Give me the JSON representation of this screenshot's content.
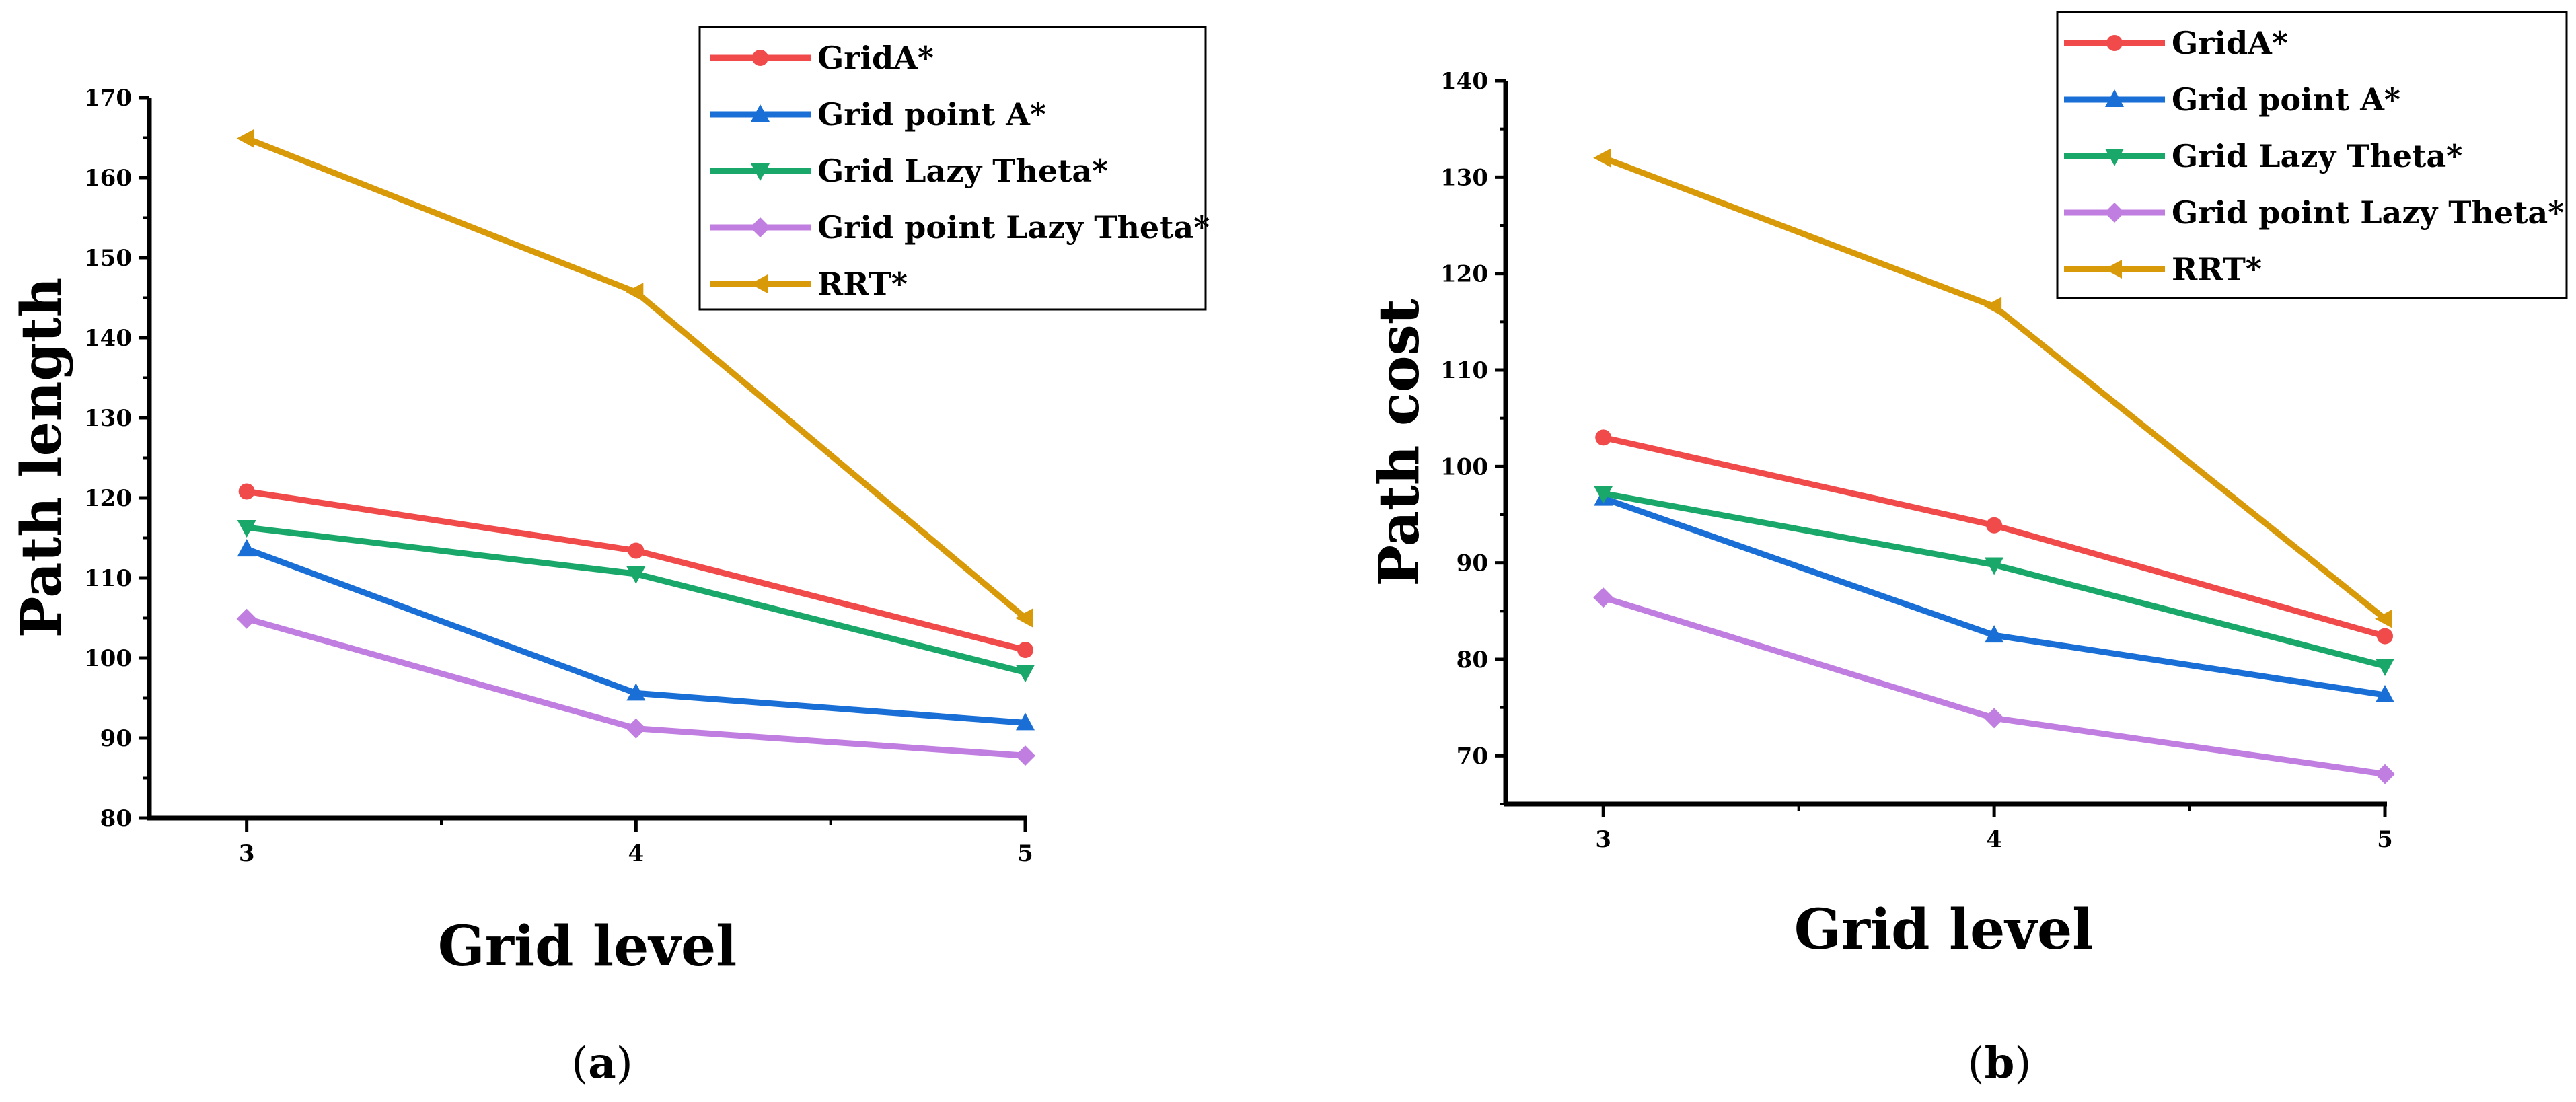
{
  "colors": {
    "GridA*": "#f04a4a",
    "Grid point A*": "#1a6fd6",
    "Grid Lazy Theta*": "#1aa86a",
    "Grid point Lazy Theta*": "#c07ee0",
    "RRT*": "#d99a0a"
  },
  "chart_data": [
    {
      "type": "line",
      "panel_label": {
        "open": "(",
        "letter": "a",
        "close": ")"
      },
      "xlabel": "Grid level",
      "ylabel": "Path length",
      "x": [
        3,
        4,
        5
      ],
      "xlim": [
        2.75,
        5
      ],
      "ylim": [
        80,
        170
      ],
      "yticks": [
        80,
        90,
        100,
        110,
        120,
        130,
        140,
        150,
        160,
        170
      ],
      "xticks": [
        3,
        4,
        5
      ],
      "grid": false,
      "legend": "top-right",
      "series": [
        {
          "name": "GridA*",
          "marker": "circle",
          "values": [
            120.8,
            113.4,
            101.0
          ]
        },
        {
          "name": "Grid point A*",
          "marker": "triangle-up",
          "values": [
            113.6,
            95.6,
            91.9
          ]
        },
        {
          "name": "Grid Lazy Theta*",
          "marker": "triangle-down",
          "values": [
            116.3,
            110.5,
            98.2
          ]
        },
        {
          "name": "Grid point Lazy Theta*",
          "marker": "diamond",
          "values": [
            104.9,
            91.2,
            87.8
          ]
        },
        {
          "name": "RRT*",
          "marker": "triangle-left",
          "values": [
            164.9,
            145.7,
            105.0
          ]
        }
      ]
    },
    {
      "type": "line",
      "panel_label": {
        "open": "(",
        "letter": "b",
        "close": ")"
      },
      "xlabel": "Grid level",
      "ylabel": "Path cost",
      "x": [
        3,
        4,
        5
      ],
      "xlim": [
        2.75,
        5
      ],
      "ylim": [
        65,
        140
      ],
      "yticks": [
        70,
        80,
        90,
        100,
        110,
        120,
        130,
        140
      ],
      "xticks": [
        3,
        4,
        5
      ],
      "grid": false,
      "legend": "top-right",
      "series": [
        {
          "name": "GridA*",
          "marker": "circle",
          "values": [
            103.0,
            93.9,
            82.4
          ]
        },
        {
          "name": "Grid point A*",
          "marker": "triangle-up",
          "values": [
            96.7,
            82.5,
            76.3
          ]
        },
        {
          "name": "Grid Lazy Theta*",
          "marker": "triangle-down",
          "values": [
            97.2,
            89.8,
            79.3
          ]
        },
        {
          "name": "Grid point Lazy Theta*",
          "marker": "diamond",
          "values": [
            86.4,
            73.9,
            68.1
          ]
        },
        {
          "name": "RRT*",
          "marker": "triangle-left",
          "values": [
            132.0,
            116.6,
            84.2
          ]
        }
      ]
    }
  ]
}
